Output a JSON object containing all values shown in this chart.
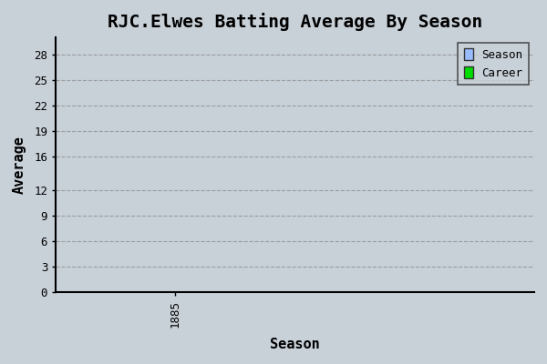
{
  "title": "RJC.Elwes Batting Average By Season",
  "xlabel": "Season",
  "ylabel": "Average",
  "xlim": [
    1884.5,
    1886.5
  ],
  "ylim": [
    0,
    30
  ],
  "yticks": [
    0,
    3,
    6,
    9,
    12,
    16,
    19,
    22,
    25,
    28
  ],
  "xticks": [
    1885
  ],
  "xtick_labels": [
    "1885"
  ],
  "background_color": "#c8d0d8",
  "plot_bg_color": "#c8d0d8",
  "grid_color": "#888888",
  "title_fontsize": 14,
  "axis_label_fontsize": 11,
  "tick_fontsize": 9,
  "legend_entries": [
    "Season",
    "Career"
  ],
  "legend_colors": [
    "#99bbff",
    "#00dd00"
  ],
  "font_family": "monospace"
}
